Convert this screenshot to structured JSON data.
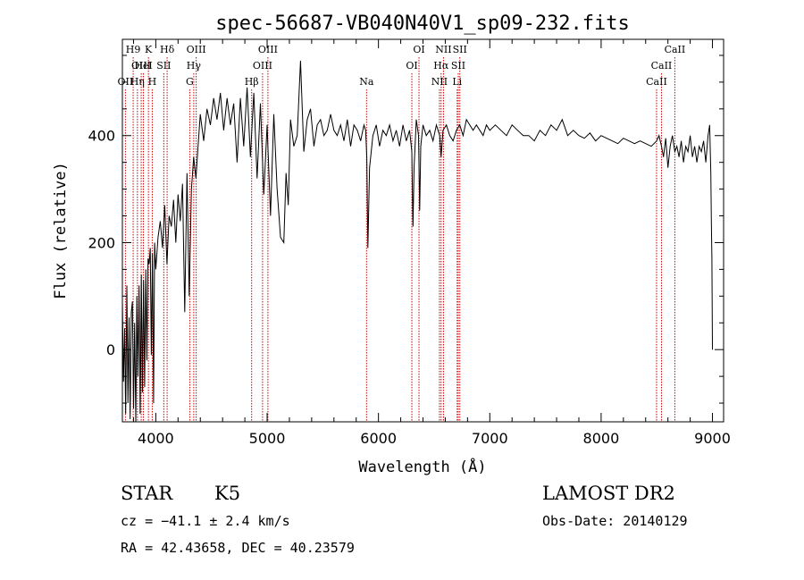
{
  "chart_data": {
    "type": "line",
    "title": "spec-56687-VB040N40V1_sp09-232.fits",
    "xlabel": "Wavelength (Å)",
    "ylabel": "Flux (relative)",
    "xlim": [
      3700,
      9100
    ],
    "ylim": [
      -135,
      580
    ],
    "x_ticks": [
      4000,
      5000,
      6000,
      7000,
      8000,
      9000
    ],
    "y_ticks": [
      0,
      200,
      400
    ],
    "line_color": "#000000",
    "marker_color": "#cc0000",
    "series": [
      {
        "x": [
          3700,
          3710,
          3720,
          3730,
          3740,
          3750,
          3760,
          3770,
          3780,
          3790,
          3800,
          3810,
          3820,
          3830,
          3840,
          3850,
          3860,
          3870,
          3880,
          3890,
          3900,
          3910,
          3920,
          3930,
          3940,
          3950,
          3960,
          3970,
          3980,
          3990,
          4000,
          4020,
          4040,
          4060,
          4080,
          4100,
          4120,
          4140,
          4160,
          4180,
          4200,
          4220,
          4240,
          4260,
          4280,
          4300,
          4320,
          4340,
          4360,
          4380,
          4400,
          4430,
          4460,
          4490,
          4520,
          4550,
          4580,
          4610,
          4640,
          4670,
          4700,
          4730,
          4760,
          4790,
          4820,
          4850,
          4880,
          4910,
          4940,
          4970,
          5000,
          5030,
          5060,
          5090,
          5120,
          5150,
          5170,
          5190,
          5210,
          5240,
          5270,
          5300,
          5330,
          5360,
          5390,
          5420,
          5450,
          5480,
          5510,
          5540,
          5570,
          5600,
          5630,
          5660,
          5690,
          5720,
          5750,
          5780,
          5810,
          5840,
          5870,
          5885,
          5895,
          5905,
          5920,
          5950,
          5980,
          6010,
          6040,
          6070,
          6100,
          6130,
          6160,
          6190,
          6220,
          6250,
          6280,
          6300,
          6310,
          6320,
          6340,
          6360,
          6370,
          6380,
          6400,
          6430,
          6460,
          6490,
          6520,
          6550,
          6563,
          6580,
          6610,
          6640,
          6670,
          6700,
          6730,
          6760,
          6790,
          6820,
          6850,
          6880,
          6910,
          6940,
          6970,
          7000,
          7050,
          7100,
          7150,
          7200,
          7250,
          7300,
          7350,
          7400,
          7450,
          7500,
          7550,
          7600,
          7650,
          7700,
          7750,
          7800,
          7850,
          7900,
          7950,
          8000,
          8050,
          8100,
          8150,
          8200,
          8250,
          8300,
          8350,
          8400,
          8450,
          8498,
          8520,
          8542,
          8560,
          8580,
          8600,
          8620,
          8640,
          8662,
          8680,
          8700,
          8720,
          8740,
          8760,
          8780,
          8800,
          8820,
          8840,
          8860,
          8880,
          8900,
          8920,
          8940,
          8960,
          8975,
          8985,
          8990,
          8995,
          9000
        ],
        "values": [
          90,
          -60,
          40,
          -120,
          120,
          -100,
          60,
          -130,
          70,
          90,
          -110,
          50,
          -140,
          100,
          -50,
          120,
          -120,
          140,
          -80,
          130,
          -70,
          150,
          -20,
          170,
          160,
          190,
          -10,
          180,
          -100,
          200,
          150,
          210,
          240,
          190,
          270,
          160,
          250,
          230,
          280,
          200,
          290,
          240,
          310,
          70,
          330,
          100,
          300,
          360,
          320,
          380,
          440,
          390,
          450,
          420,
          470,
          430,
          480,
          410,
          470,
          420,
          460,
          350,
          470,
          380,
          490,
          360,
          480,
          320,
          460,
          290,
          420,
          250,
          440,
          300,
          210,
          200,
          330,
          270,
          430,
          380,
          400,
          540,
          370,
          430,
          450,
          380,
          420,
          430,
          400,
          410,
          440,
          410,
          400,
          420,
          390,
          430,
          380,
          420,
          410,
          390,
          420,
          410,
          360,
          190,
          340,
          400,
          420,
          380,
          410,
          400,
          420,
          390,
          410,
          380,
          420,
          390,
          410,
          370,
          230,
          340,
          430,
          400,
          260,
          380,
          420,
          400,
          410,
          390,
          420,
          400,
          360,
          410,
          420,
          400,
          390,
          410,
          420,
          400,
          430,
          420,
          410,
          420,
          410,
          400,
          420,
          410,
          420,
          410,
          400,
          420,
          410,
          400,
          400,
          390,
          410,
          400,
          420,
          410,
          430,
          400,
          410,
          400,
          395,
          405,
          390,
          400,
          395,
          390,
          385,
          395,
          390,
          385,
          390,
          385,
          380,
          390,
          400,
          380,
          360,
          395,
          340,
          380,
          400,
          370,
          380,
          360,
          390,
          350,
          380,
          370,
          400,
          360,
          380,
          350,
          380,
          370,
          390,
          350,
          400,
          420,
          330,
          240,
          170,
          0
        ]
      }
    ],
    "line_markers": [
      {
        "x": 3727,
        "label": "OII",
        "row": 2
      },
      {
        "x": 3797,
        "label": "H9",
        "row": 0
      },
      {
        "x": 3835,
        "label": "Hη",
        "row": 2
      },
      {
        "x": 3869,
        "label": "OIII",
        "row": 1
      },
      {
        "x": 3889,
        "label": "HeI",
        "row": 1
      },
      {
        "x": 3934,
        "label": "K",
        "row": 0
      },
      {
        "x": 3968,
        "label": "H",
        "row": 2
      },
      {
        "x": 4072,
        "label": "SII",
        "row": 1
      },
      {
        "x": 4102,
        "label": "Hδ",
        "row": 0
      },
      {
        "x": 4305,
        "label": "G",
        "row": 2
      },
      {
        "x": 4341,
        "label": "Hγ",
        "row": 1
      },
      {
        "x": 4363,
        "label": "OIII",
        "row": 0
      },
      {
        "x": 4861,
        "label": "Hβ",
        "row": 2
      },
      {
        "x": 4959,
        "label": "OIII",
        "row": 1
      },
      {
        "x": 5007,
        "label": "OIII",
        "row": 0
      },
      {
        "x": 5893,
        "label": "Na",
        "row": 2
      },
      {
        "x": 6300,
        "label": "OI",
        "row": 1
      },
      {
        "x": 6364,
        "label": "OI",
        "row": 0
      },
      {
        "x": 6548,
        "label": "NII",
        "row": 2
      },
      {
        "x": 6563,
        "label": "Hα",
        "row": 1
      },
      {
        "x": 6584,
        "label": "NII",
        "row": 0
      },
      {
        "x": 6707,
        "label": "Li",
        "row": 2
      },
      {
        "x": 6717,
        "label": "SII",
        "row": 1
      },
      {
        "x": 6731,
        "label": "SII",
        "row": 0
      },
      {
        "x": 8498,
        "label": "CaII",
        "row": 2
      },
      {
        "x": 8542,
        "label": "CaII",
        "row": 1
      },
      {
        "x": 8662,
        "label": "CaII",
        "row": 0
      }
    ]
  },
  "info": {
    "class": "STAR",
    "subclass": "K5",
    "survey": "LAMOST DR2",
    "cz": "cz = −41.1 ± 2.4 km/s",
    "obs_date": "Obs-Date: 20140129",
    "radec": "RA =  42.43658, DEC =  40.23579"
  }
}
